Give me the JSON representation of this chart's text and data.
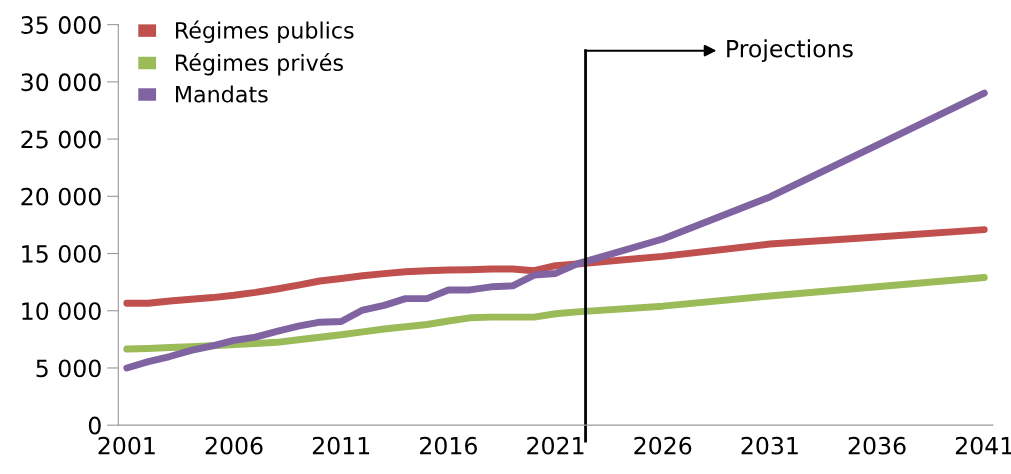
{
  "chart_data": {
    "type": "line",
    "x": [
      2001,
      2002,
      2003,
      2004,
      2005,
      2006,
      2007,
      2008,
      2009,
      2010,
      2011,
      2012,
      2013,
      2014,
      2015,
      2016,
      2017,
      2018,
      2019,
      2020,
      2021,
      2022,
      2026,
      2031,
      2036,
      2041
    ],
    "series": [
      {
        "name": "Régimes publics",
        "color": "#c0504d",
        "values": [
          10650,
          10650,
          10850,
          11000,
          11150,
          11350,
          11600,
          11900,
          12240,
          12600,
          12820,
          13060,
          13240,
          13400,
          13500,
          13560,
          13590,
          13650,
          13650,
          13500,
          13940,
          14090,
          14750,
          15830,
          16450,
          17090
        ]
      },
      {
        "name": "Régimes privés",
        "color": "#9bbb59",
        "values": [
          6650,
          6700,
          6780,
          6860,
          6940,
          7040,
          7140,
          7240,
          7460,
          7680,
          7900,
          8150,
          8400,
          8600,
          8800,
          9100,
          9380,
          9440,
          9440,
          9440,
          9740,
          9900,
          10400,
          11290,
          12100,
          12900
        ]
      },
      {
        "name": "Mandats",
        "color": "#8064a2",
        "values": [
          5000,
          5560,
          6000,
          6530,
          6940,
          7410,
          7700,
          8200,
          8650,
          9000,
          9060,
          10060,
          10470,
          11060,
          11060,
          11820,
          11820,
          12090,
          12180,
          13120,
          13260,
          14090,
          16270,
          19940,
          24480,
          29020
        ]
      }
    ],
    "xlim": [
      2000.6,
      2041.4
    ],
    "xticks": [
      2001,
      2006,
      2011,
      2016,
      2021,
      2026,
      2031,
      2036,
      2041
    ],
    "ylim": [
      0,
      35000
    ],
    "yticks": [
      {
        "value": 0,
        "label": "0"
      },
      {
        "value": 5000,
        "label": "5 000"
      },
      {
        "value": 10000,
        "label": "10 000"
      },
      {
        "value": 15000,
        "label": "15 000"
      },
      {
        "value": 20000,
        "label": "20 000"
      },
      {
        "value": 25000,
        "label": "25 000"
      },
      {
        "value": 30000,
        "label": "30 000"
      },
      {
        "value": 35000,
        "label": "35 000"
      }
    ],
    "ref_lines": [
      {
        "axis": "x",
        "value": 2022.4,
        "label": "Projections",
        "color": "#000000"
      }
    ],
    "legend": "top left",
    "grid": false,
    "marker": "none",
    "line_style": "solid"
  }
}
